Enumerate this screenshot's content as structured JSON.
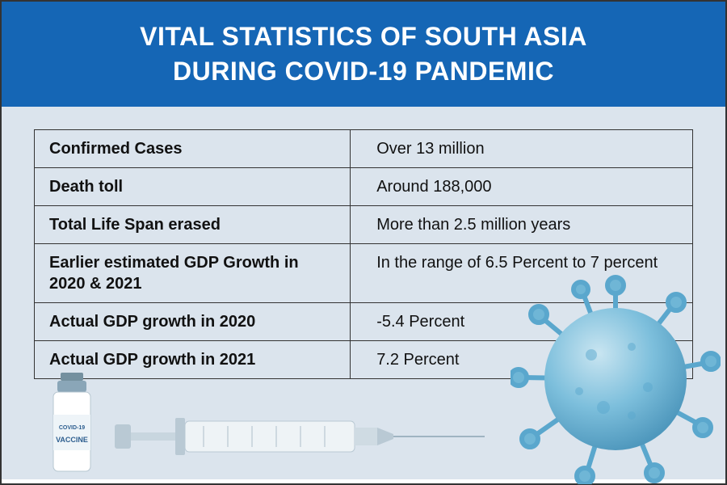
{
  "header": {
    "line1": "VITAL STATISTICS OF SOUTH ASIA",
    "line2": "DURING COVID-19 PANDEMIC",
    "bg_color": "#1566b5",
    "text_color": "#ffffff",
    "fontsize": 32
  },
  "body": {
    "bg_color": "#dbe4ed"
  },
  "table": {
    "border_color": "#333333",
    "label_font_weight": "bold",
    "fontsize": 20,
    "rows": [
      {
        "label": "Confirmed Cases",
        "value": "Over 13 million"
      },
      {
        "label": "Death toll",
        "value": "Around 188,000"
      },
      {
        "label": "Total Life Span erased",
        "value": "More than 2.5 million years"
      },
      {
        "label": "Earlier estimated GDP Growth in 2020 & 2021",
        "value": "In the range of 6.5 Percent to 7 percent"
      },
      {
        "label": "Actual GDP growth in 2020",
        "value": "-5.4 Percent"
      },
      {
        "label": "Actual GDP growth in 2021",
        "value": " 7.2 Percent"
      }
    ]
  },
  "illustration": {
    "vial": {
      "body_color": "#ffffff",
      "cap_color": "#8aa6b8",
      "label_color": "#3a6fa5",
      "label_line1": "COVID-19",
      "label_line2": "VACCINE"
    },
    "syringe": {
      "barrel_color": "#e6edf2",
      "plunger_color": "#b9c9d4",
      "needle_color": "#9fb4c2"
    },
    "virus": {
      "body_color": "#6fb6d6",
      "spike_color": "#5aa7cd",
      "highlight_color": "#c9e5f1"
    }
  }
}
